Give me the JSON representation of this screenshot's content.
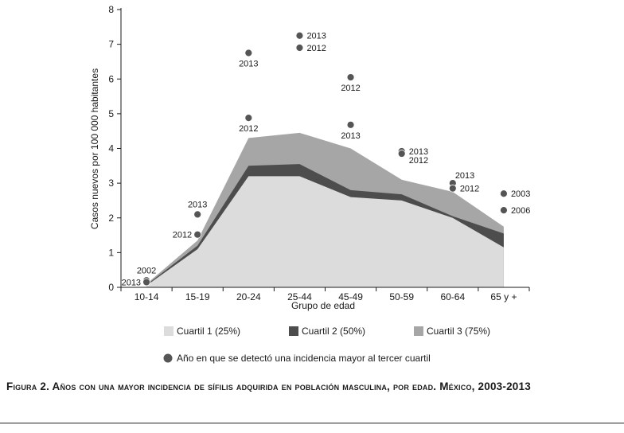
{
  "caption": "Figura 2. Años con una mayor incidencia de sífilis adquirida en población masculina, por edad. México, 2003-2013",
  "chart_data": {
    "type": "area",
    "title": "",
    "xlabel": "Grupo de edad",
    "ylabel": "Casos nuevos por 100 000 habitantes",
    "ylim": [
      0,
      8
    ],
    "yticks": [
      "0",
      "1",
      "2",
      "3",
      "4",
      "5",
      "6",
      "7",
      "8"
    ],
    "categories": [
      "10-14",
      "15-19",
      "20-24",
      "25-44",
      "45-49",
      "50-59",
      "60-64",
      "65 y +"
    ],
    "series": [
      {
        "name": "Cuartil 1 (25%)",
        "values": [
          0.05,
          1.1,
          3.2,
          3.2,
          2.6,
          2.5,
          2.0,
          1.15
        ],
        "color": "#dcdcdc"
      },
      {
        "name": "Cuartil 2 (50%)",
        "values": [
          0.07,
          1.2,
          3.5,
          3.55,
          2.8,
          2.68,
          2.05,
          1.55
        ],
        "color": "#4d4d4d"
      },
      {
        "name": "Cuartil 3 (75%)",
        "values": [
          0.1,
          1.35,
          4.3,
          4.45,
          4.0,
          3.1,
          2.75,
          1.75
        ],
        "color": "#a6a6a6"
      }
    ],
    "points_legend": "Año en que se detectó una incidencia mayor al tercer cuartil",
    "point_color": "#555555",
    "points": [
      {
        "category": "10-14",
        "value": 0.2,
        "label": "2002",
        "label_pos": "above"
      },
      {
        "category": "10-14",
        "value": 0.15,
        "label": "2013",
        "label_pos": "left"
      },
      {
        "category": "15-19",
        "value": 2.1,
        "label": "2013",
        "label_pos": "above"
      },
      {
        "category": "15-19",
        "value": 1.52,
        "label": "2012",
        "label_pos": "left"
      },
      {
        "category": "20-24",
        "value": 6.75,
        "label": "2013",
        "label_pos": "below"
      },
      {
        "category": "20-24",
        "value": 4.88,
        "label": "2012",
        "label_pos": "below"
      },
      {
        "category": "25-44",
        "value": 7.25,
        "label": "2013",
        "label_pos": "right"
      },
      {
        "category": "25-44",
        "value": 6.9,
        "label": "2012",
        "label_pos": "right"
      },
      {
        "category": "45-49",
        "value": 6.05,
        "label": "2012",
        "label_pos": "below"
      },
      {
        "category": "45-49",
        "value": 4.68,
        "label": "2013",
        "label_pos": "below"
      },
      {
        "category": "50-59",
        "value": 3.92,
        "label": "2013",
        "label_pos": "right"
      },
      {
        "category": "50-59",
        "value": 3.85,
        "label": "2012",
        "label_pos": "right-low"
      },
      {
        "category": "60-64",
        "value": 3.0,
        "label": "2013",
        "label_pos": "right-high"
      },
      {
        "category": "60-64",
        "value": 2.85,
        "label": "2012",
        "label_pos": "right"
      },
      {
        "category": "65 y +",
        "value": 2.7,
        "label": "2003",
        "label_pos": "right"
      },
      {
        "category": "65 y +",
        "value": 2.22,
        "label": "2006",
        "label_pos": "right"
      }
    ]
  }
}
